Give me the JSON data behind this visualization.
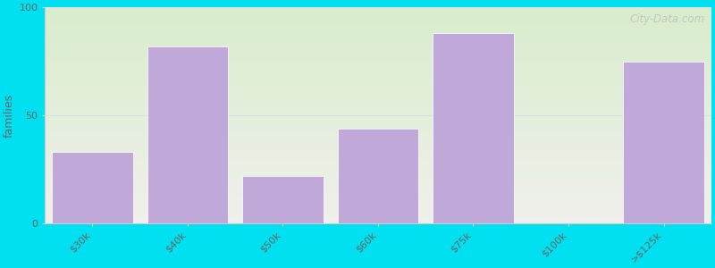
{
  "categories": [
    "$30k",
    "$40k",
    "$50k",
    "$60k",
    "$75k",
    "$100k",
    ">$125k"
  ],
  "values": [
    33,
    82,
    22,
    44,
    88,
    0,
    75
  ],
  "bar_color": "#c0a8d8",
  "bar_edge_color": "#ffffff",
  "ylabel": "families",
  "ylim": [
    0,
    100
  ],
  "yticks": [
    0,
    50,
    100
  ],
  "background_color": "#00e0f0",
  "plot_bg_color_top": "#d8edcc",
  "plot_bg_color_bottom": "#f0f0ec",
  "title_fontsize": 15,
  "subtitle_fontsize": 10,
  "subtitle_color": "#2288aa",
  "watermark_text": "City-Data.com",
  "watermark_color": "#bbbbbb",
  "tick_color": "#666666",
  "ylabel_color": "#666666",
  "grid_color": "#e0e0e0",
  "spine_color": "#cccccc"
}
